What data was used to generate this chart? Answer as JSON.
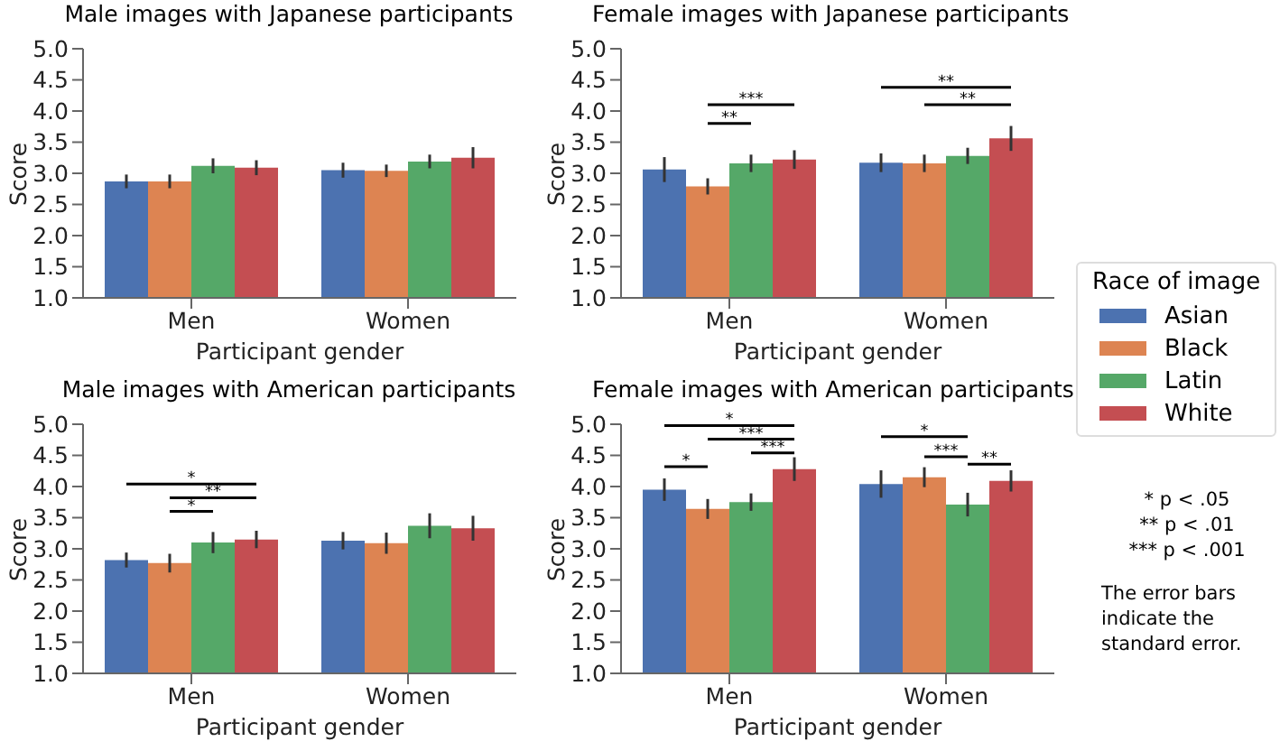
{
  "chart_data": [
    {
      "type": "bar",
      "title": "Male images with Japanese participants",
      "xlabel": "Participant gender",
      "ylabel": "Score",
      "categories": [
        "Men",
        "Women"
      ],
      "series": [
        {
          "color": "#4c72b0",
          "values": [
            2.87,
            3.05
          ],
          "errors": [
            0.11,
            0.12
          ]
        },
        {
          "color": "#dd8452",
          "values": [
            2.87,
            3.04
          ],
          "errors": [
            0.11,
            0.1
          ]
        },
        {
          "color": "#55a868",
          "values": [
            3.12,
            3.19
          ],
          "errors": [
            0.12,
            0.11
          ]
        },
        {
          "color": "#c44e52",
          "values": [
            3.09,
            3.25
          ],
          "errors": [
            0.12,
            0.17
          ]
        }
      ],
      "ylim": [
        1,
        5
      ],
      "yticks": [
        {
          "value": 1,
          "label": "1.0"
        },
        {
          "value": 1.5,
          "label": "1.5"
        },
        {
          "value": 2,
          "label": "2.0"
        },
        {
          "value": 2.5,
          "label": "2.5"
        },
        {
          "value": 3,
          "label": "3.0"
        },
        {
          "value": 3.5,
          "label": "3.5"
        },
        {
          "value": 4,
          "label": "4.0"
        },
        {
          "value": 4.5,
          "label": "4.5"
        },
        {
          "value": 5,
          "label": "5.0"
        }
      ]
    },
    {
      "type": "bar",
      "title": "Female images with Japanese participants",
      "xlabel": "Participant gender",
      "ylabel": "Score",
      "categories": [
        "Men",
        "Women"
      ],
      "series": [
        {
          "name": "Asian",
          "color": "#4c72b0",
          "values": [
            3.06,
            3.17
          ],
          "errors": [
            0.2,
            0.15
          ]
        },
        {
          "name": "Black",
          "color": "#dd8452",
          "values": [
            2.79,
            3.16
          ],
          "errors": [
            0.13,
            0.14
          ]
        },
        {
          "name": "Latin",
          "color": "#55a868",
          "values": [
            3.16,
            3.28
          ],
          "errors": [
            0.14,
            0.13
          ]
        },
        {
          "name": "White",
          "color": "#c44e52",
          "values": [
            3.22,
            3.56
          ],
          "errors": [
            0.15,
            0.2
          ]
        }
      ],
      "ylim": [
        1,
        5
      ],
      "yticks": [
        {
          "value": 1,
          "label": "1.0"
        },
        {
          "value": 1.5,
          "label": "1.5"
        },
        {
          "value": 2,
          "label": "2.0"
        },
        {
          "value": 2.5,
          "label": "2.5"
        },
        {
          "value": 3,
          "label": "3.0"
        },
        {
          "value": 3.5,
          "label": "3.5"
        },
        {
          "value": 4,
          "label": "4.0"
        },
        {
          "value": 4.5,
          "label": "4.5"
        },
        {
          "value": 5,
          "label": "5.0"
        }
      ],
      "legend": "right",
      "legend_title": "Race of image",
      "annotations": [
        "**",
        "***",
        "**",
        "**"
      ]
    },
    {
      "type": "bar",
      "title": "Male images with American participants",
      "xlabel": "Participant gender",
      "ylabel": "Score",
      "categories": [
        "Men",
        "Women"
      ],
      "series": [
        {
          "color": "#4c72b0",
          "values": [
            2.82,
            3.13
          ],
          "errors": [
            0.12,
            0.14
          ]
        },
        {
          "color": "#dd8452",
          "values": [
            2.77,
            3.09
          ],
          "errors": [
            0.15,
            0.17
          ]
        },
        {
          "color": "#55a868",
          "values": [
            3.1,
            3.37
          ],
          "errors": [
            0.17,
            0.2
          ]
        },
        {
          "color": "#c44e52",
          "values": [
            3.15,
            3.33
          ],
          "errors": [
            0.14,
            0.2
          ]
        }
      ],
      "ylim": [
        1,
        5
      ],
      "yticks": [
        {
          "value": 1,
          "label": "1.0"
        },
        {
          "value": 1.5,
          "label": "1.5"
        },
        {
          "value": 2,
          "label": "2.0"
        },
        {
          "value": 2.5,
          "label": "2.5"
        },
        {
          "value": 3,
          "label": "3.0"
        },
        {
          "value": 3.5,
          "label": "3.5"
        },
        {
          "value": 4,
          "label": "4.0"
        },
        {
          "value": 4.5,
          "label": "4.5"
        },
        {
          "value": 5,
          "label": "5.0"
        }
      ],
      "annotations": [
        "*",
        "**",
        "*"
      ]
    },
    {
      "type": "bar",
      "title": "Female images with American participants",
      "xlabel": "Participant gender",
      "ylabel": "Score",
      "categories": [
        "Men",
        "Women"
      ],
      "series": [
        {
          "color": "#4c72b0",
          "values": [
            3.95,
            4.04
          ],
          "errors": [
            0.18,
            0.22
          ]
        },
        {
          "color": "#dd8452",
          "values": [
            3.64,
            4.15
          ],
          "errors": [
            0.16,
            0.16
          ]
        },
        {
          "color": "#55a868",
          "values": [
            3.75,
            3.71
          ],
          "errors": [
            0.14,
            0.19
          ]
        },
        {
          "color": "#c44e52",
          "values": [
            4.28,
            4.09
          ],
          "errors": [
            0.19,
            0.17
          ]
        }
      ],
      "ylim": [
        1,
        5
      ],
      "yticks": [
        {
          "value": 1,
          "label": "1.0"
        },
        {
          "value": 1.5,
          "label": "1.5"
        },
        {
          "value": 2,
          "label": "2.0"
        },
        {
          "value": 2.5,
          "label": "2.5"
        },
        {
          "value": 3,
          "label": "3.0"
        },
        {
          "value": 3.5,
          "label": "3.5"
        },
        {
          "value": 4,
          "label": "4.0"
        },
        {
          "value": 4.5,
          "label": "4.5"
        },
        {
          "value": 5,
          "label": "5.0"
        }
      ],
      "annotations": [
        "*",
        "*",
        "***",
        "***",
        "*",
        "***",
        "**",
        "* p < .05",
        "** p < .01",
        "*** p < .001",
        "The error bars indicate the standard error."
      ]
    }
  ]
}
